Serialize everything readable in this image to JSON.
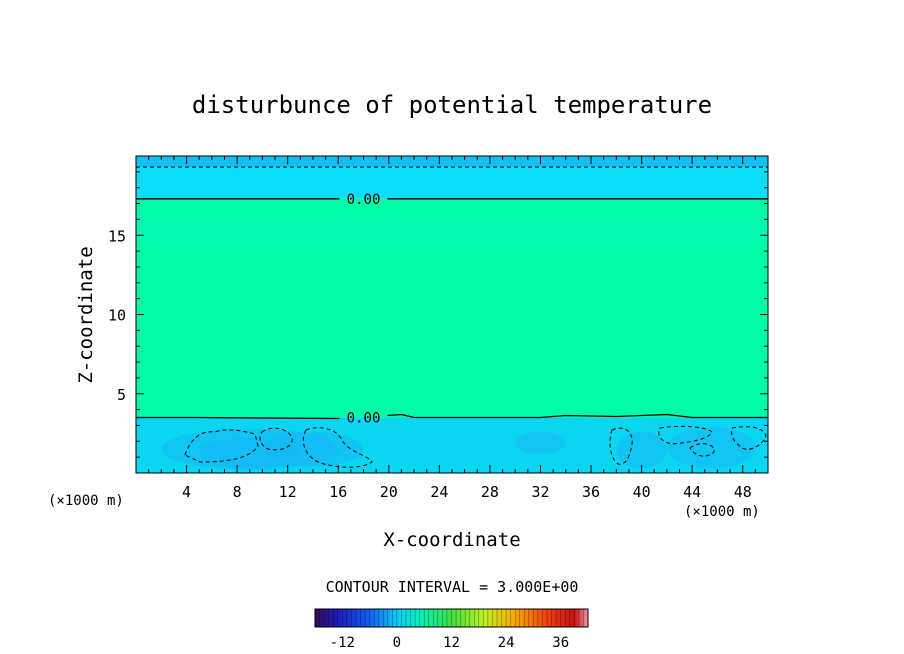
{
  "chart_data": {
    "type": "heatmap",
    "title": "disturbunce of potential temperature",
    "xlabel": "X-coordinate",
    "ylabel": "Z-coordinate",
    "x_unit": "(×1000 m)",
    "x_unit_right": "(×1000 m)",
    "xlim": [
      0,
      50
    ],
    "ylim": [
      0,
      20
    ],
    "x_ticks": [
      4,
      8,
      12,
      16,
      20,
      24,
      28,
      32,
      36,
      40,
      44,
      48
    ],
    "y_ticks": [
      5,
      10,
      15
    ],
    "contour_interval_text": "CONTOUR INTERVAL = 3.000E+00",
    "contour_interval": 3.0,
    "zero_contour_label": "0.00",
    "zero_contours": [
      {
        "label": "0.00",
        "z": 17.3
      },
      {
        "label": "0.00",
        "z": 3.5
      }
    ],
    "field_layers": [
      {
        "z_from": 19.3,
        "z_to": 20.0,
        "value": -3
      },
      {
        "z_from": 17.3,
        "z_to": 19.3,
        "value": -1.5
      },
      {
        "z_from": 3.5,
        "z_to": 17.3,
        "value": 1
      },
      {
        "z_from": 0.0,
        "z_to": 3.5,
        "value": -2
      }
    ],
    "colorbar": {
      "range": [
        -18,
        42
      ],
      "tick_labels": [
        "-12",
        "0",
        "12",
        "24",
        "36"
      ],
      "tick_values": [
        -12,
        0,
        12,
        24,
        36
      ]
    },
    "colors": {
      "upper_band": "#0bdcf7",
      "top_band": "#12bff2",
      "mid_field": "#00fca6",
      "low_band": "#0bd6f2",
      "negative_cells": "#16b6f4"
    }
  }
}
